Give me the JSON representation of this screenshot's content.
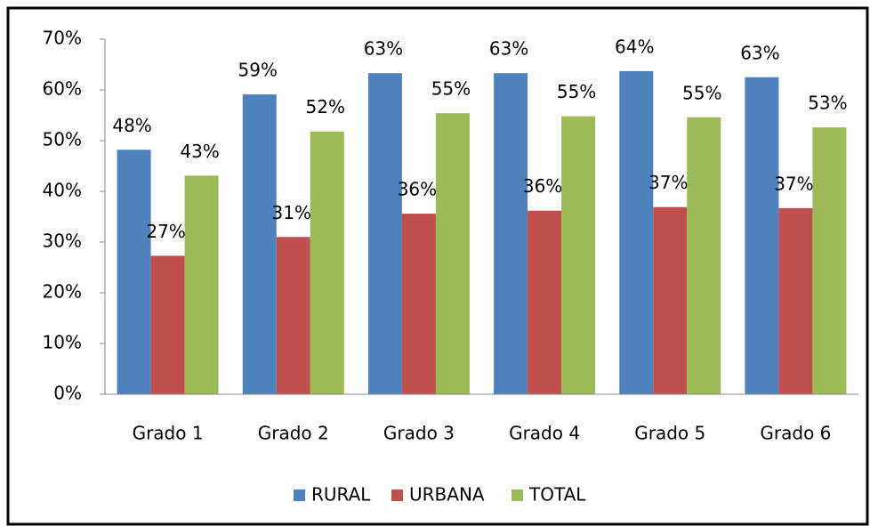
{
  "chart_data": {
    "type": "bar",
    "categories": [
      "Grado 1",
      "Grado 2",
      "Grado 3",
      "Grado 4",
      "Grado 5",
      "Grado 6"
    ],
    "series": [
      {
        "name": "RURAL",
        "color": "#4f81bd",
        "values": [
          48.2,
          59.1,
          63.3,
          63.3,
          63.7,
          62.5
        ],
        "value_labels": [
          "48%",
          "59%",
          "63%",
          "63%",
          "64%",
          "63%"
        ]
      },
      {
        "name": "URBANA",
        "color": "#c0504d",
        "values": [
          27.3,
          31.0,
          35.6,
          36.2,
          36.9,
          36.7
        ],
        "value_labels": [
          "27%",
          "31%",
          "36%",
          "36%",
          "37%",
          "37%"
        ]
      },
      {
        "name": "TOTAL",
        "color": "#9bbb59",
        "values": [
          43.1,
          51.8,
          55.4,
          54.8,
          54.6,
          52.6
        ],
        "value_labels": [
          "43%",
          "52%",
          "55%",
          "55%",
          "55%",
          "53%"
        ]
      }
    ],
    "ylim": [
      0,
      70
    ],
    "yticks": [
      {
        "value": 0,
        "label": "0%"
      },
      {
        "value": 10,
        "label": "10%"
      },
      {
        "value": 20,
        "label": "20%"
      },
      {
        "value": 30,
        "label": "30%"
      },
      {
        "value": 40,
        "label": "40%"
      },
      {
        "value": 50,
        "label": "50%"
      },
      {
        "value": 60,
        "label": "60%"
      },
      {
        "value": 70,
        "label": "70%"
      }
    ],
    "grid": false,
    "legend": "bottom"
  }
}
